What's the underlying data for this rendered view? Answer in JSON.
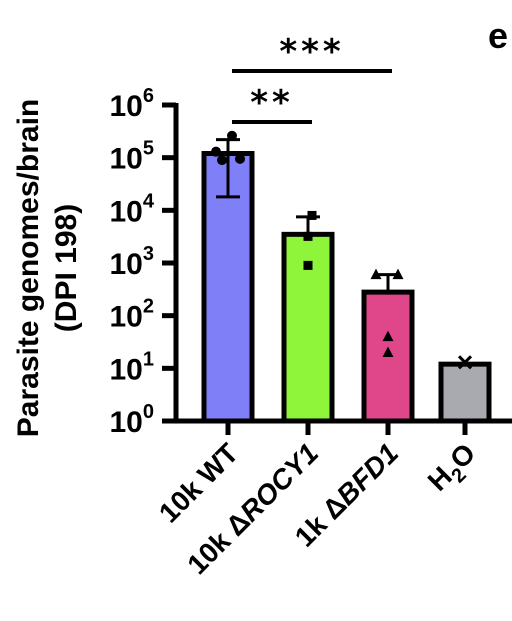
{
  "panel_label": "e",
  "chart_data": {
    "type": "bar",
    "ylabel_line1": "Parasite genomes/brain",
    "ylabel_line2": "(DPI 198)",
    "yscale": "log",
    "ylim": [
      1,
      1000000
    ],
    "yticks": [
      {
        "value": 1,
        "base": "10",
        "exp": "0"
      },
      {
        "value": 10,
        "base": "10",
        "exp": "1"
      },
      {
        "value": 100,
        "base": "10",
        "exp": "2"
      },
      {
        "value": 1000,
        "base": "10",
        "exp": "3"
      },
      {
        "value": 10000,
        "base": "10",
        "exp": "4"
      },
      {
        "value": 100000,
        "base": "10",
        "exp": "5"
      },
      {
        "value": 1000000,
        "base": "10",
        "exp": "6"
      }
    ],
    "categories": [
      {
        "prefix": "10k ",
        "italic": "WT",
        "italicize": false
      },
      {
        "prefix": "10k Δ",
        "italic": "ROCY1",
        "italicize": true
      },
      {
        "prefix": "1k Δ",
        "italic": "BFD1",
        "italicize": true
      },
      {
        "prefix": "H",
        "sub": "2",
        "suffix": "O",
        "italicize": false
      }
    ],
    "values": [
      120000,
      3500,
      280,
      12
    ],
    "error_high": [
      220000,
      7500,
      600,
      null
    ],
    "error_low": [
      18000,
      null,
      null,
      null
    ],
    "colors": [
      "#7f7ff7",
      "#8ef53a",
      "#e0468a",
      "#a9a9b0"
    ],
    "points": [
      {
        "marker": "circle",
        "values": [
          260000,
          130000,
          95000,
          90000
        ]
      },
      {
        "marker": "square",
        "values": [
          8000,
          3200,
          900
        ]
      },
      {
        "marker": "triangle",
        "values": [
          600,
          600,
          40,
          20
        ]
      },
      {
        "marker": "x",
        "values": [
          13
        ]
      }
    ],
    "significance": [
      {
        "from": 0,
        "to": 2,
        "label": "***"
      },
      {
        "from": 0,
        "to": 1,
        "label": "**"
      }
    ]
  }
}
